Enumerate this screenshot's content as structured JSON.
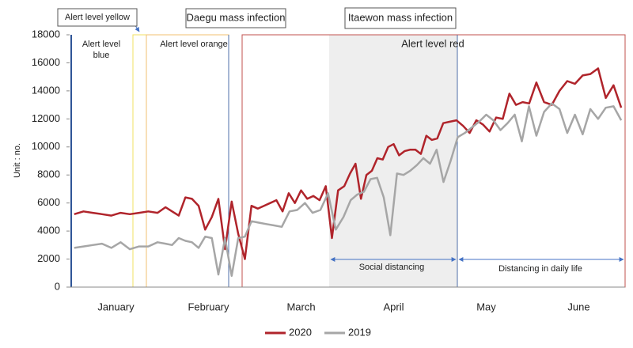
{
  "chart_data": {
    "type": "line",
    "y_label": "Unit : no.",
    "categories": [
      "January",
      "February",
      "March",
      "April",
      "May",
      "June"
    ],
    "ylim": [
      0,
      18000
    ],
    "yticks": [
      0,
      {
        "value": 2000,
        "label": "2000"
      },
      4000,
      6000,
      8000,
      10000,
      12000,
      14000,
      16000,
      18000
    ],
    "series": [
      {
        "name": "2020",
        "color": "#b0242b",
        "values": [
          [
            5200,
            5400,
            5300,
            5200,
            5100,
            5300,
            5200,
            5300,
            5400,
            5300
          ],
          [
            5700,
            5400,
            5100,
            6400,
            6300,
            5800,
            4100,
            5000,
            6300,
            2700,
            6100,
            3800,
            2000,
            5800
          ],
          [
            5600,
            5800,
            6000,
            6200,
            5400,
            6700,
            6000,
            6900,
            6300,
            6500,
            6200,
            7200,
            3500,
            6900,
            7200
          ],
          [
            8100,
            8800,
            6300,
            8000,
            8300,
            9200,
            9100,
            10000,
            10200,
            9400,
            9700,
            9800,
            9800,
            9500,
            10800,
            10500,
            10600
          ],
          [
            11700,
            11800,
            11900,
            11500,
            11000,
            11900,
            11600,
            11100,
            12100,
            12000,
            13800,
            13000,
            13200,
            13100
          ],
          [
            14600,
            13200,
            13000,
            14000,
            14700,
            14500,
            15100,
            15200,
            15600,
            13500,
            14400,
            12800
          ]
        ]
      },
      {
        "name": "2019",
        "color": "#a6a6a6",
        "values": [
          [
            2800,
            2900,
            3000,
            3100,
            2800,
            3200,
            2700,
            2900,
            2900,
            3200
          ],
          [
            3100,
            3000,
            3500,
            3300,
            3200,
            2800,
            3600,
            3500,
            900,
            3500,
            800,
            3500,
            3600,
            4700
          ],
          [
            4600,
            4500,
            4400,
            4300,
            5400,
            5500,
            6000,
            5300,
            5500,
            6700,
            4100,
            5000
          ],
          [
            6200,
            6600,
            6800,
            7700,
            7800,
            6400,
            3700,
            8100,
            8000,
            8300,
            8700,
            9200,
            8800,
            9800
          ],
          [
            7500,
            9000,
            10700,
            11000,
            11400,
            11800,
            12300,
            11900,
            11200,
            11700,
            12300,
            10400,
            12900
          ],
          [
            10800,
            12500,
            13100,
            12700,
            11000,
            12300,
            10900,
            12700,
            12000,
            12800,
            12900,
            11900
          ]
        ]
      }
    ],
    "annotations": {
      "events": [
        "Alert level yellow",
        "Daegu mass infection",
        "Itaewon mass infection"
      ],
      "alert_blue": [
        "Alert level",
        "blue"
      ],
      "alert_orange": "Alert level orange",
      "alert_red": "Alert level red",
      "social_distancing": "Social distancing",
      "daily_life": "Distancing in daily life"
    }
  }
}
